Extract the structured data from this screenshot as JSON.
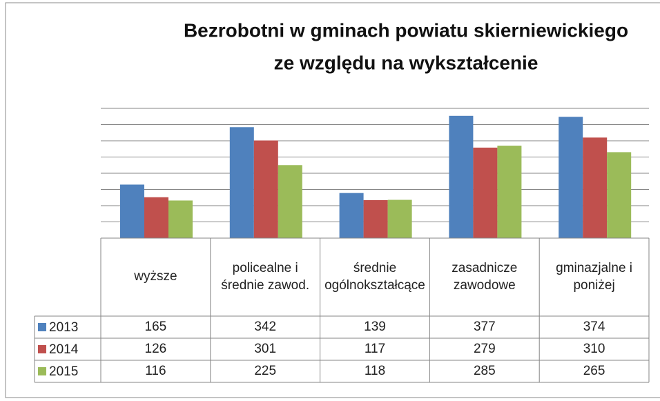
{
  "chart_data": {
    "type": "bar",
    "title": [
      "Bezrobotni w gminach powiatu skierniewickiego",
      "ze względu na wykształcenie"
    ],
    "categories": [
      "wyższe",
      "policealne i średnie zawod.",
      "średnie ogólnokształcące",
      "zasadnicze zawodowe",
      "gminazjalne i poniżej"
    ],
    "series": [
      {
        "name": "2013",
        "color": "#4f81bd",
        "values": [
          165,
          342,
          139,
          377,
          374
        ]
      },
      {
        "name": "2014",
        "color": "#c0504d",
        "values": [
          126,
          301,
          117,
          279,
          310
        ]
      },
      {
        "name": "2015",
        "color": "#9bbb59",
        "values": [
          116,
          225,
          118,
          285,
          265
        ]
      }
    ],
    "ylim": [
      0,
      400
    ],
    "yticks": [
      0,
      50,
      100,
      150,
      200,
      250,
      300,
      350,
      400
    ],
    "grid": true,
    "data_table": true
  }
}
